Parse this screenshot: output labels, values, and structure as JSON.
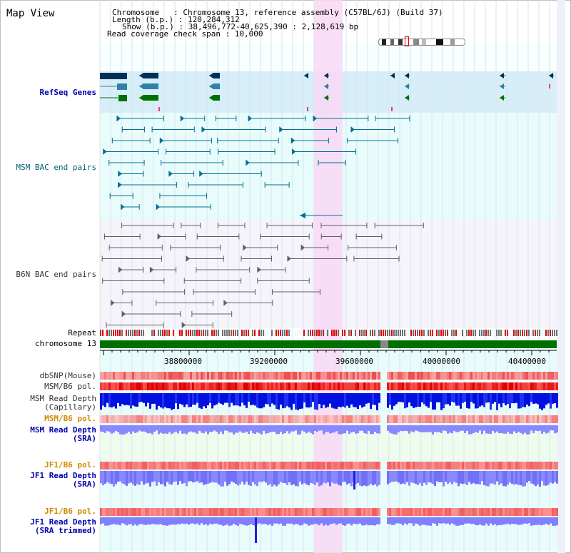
{
  "view_title": "Map View",
  "info": {
    "line1": "Chromosome   : Chromosome 13, reference assembly (C57BL/6J) (Build 37)",
    "line2": "Length (b.p.) : 120,284,312",
    "line3": "Show (b.p.) : 38,496,772-40,625,390 : 2,128,619 bp",
    "line4": "Read coverage check span : 10,000"
  },
  "tracks": {
    "refseq": "RefSeq Genes",
    "msm_bac": "MSM BAC end pairs",
    "b6n_bac": "B6N BAC end pairs",
    "repeat": "Repeat",
    "chromosome": "chromosome 13",
    "dbsnp": "dbSNP(Mouse)",
    "msm_b6_pol_1": "MSM/B6 pol.",
    "msm_read_depth_cap_1": "MSM Read Depth",
    "msm_read_depth_cap_2": "(Capillary)",
    "msm_b6_pol_2": "MSM/B6 pol.",
    "msm_read_depth_sra_1": "MSM Read Depth",
    "msm_read_depth_sra_2": "(SRA)",
    "jf1_b6_pol_1": "JF1/B6 pol.",
    "jf1_read_depth_sra_1": "JF1 Read Depth",
    "jf1_read_depth_sra_2": "(SRA)",
    "jf1_b6_pol_2": "JF1/B6 pol.",
    "jf1_read_depth_trim_1": "JF1 Read Depth",
    "jf1_read_depth_trim_2": "(SRA trimmed)"
  },
  "axis_ticks": [
    "38800000",
    "39200000",
    "39600000",
    "40000000",
    "40400000"
  ],
  "colors": {
    "refseq_bg": "#d6eef8",
    "msm_bac_bg": "#e8fcfc",
    "b6n_bac_bg": "#f4f4fa",
    "highlight": "#f8d8f4",
    "chromosome_bar": "#007000",
    "label_blue": "#0000b0",
    "label_orange": "#d08a00",
    "depth_blue": "#0010e0",
    "depth_light": "#8080ff"
  }
}
